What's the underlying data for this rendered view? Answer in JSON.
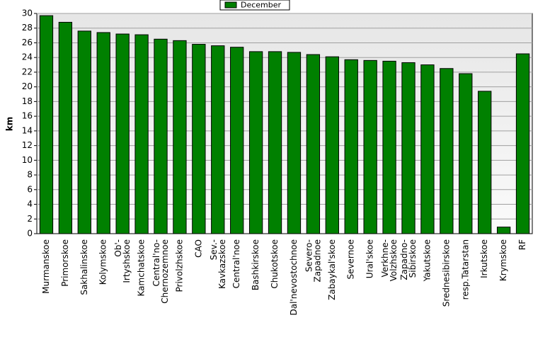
{
  "chart_data": {
    "type": "bar",
    "y_label": "km",
    "legend": "top",
    "series": [
      {
        "name": "December",
        "color": "#008000",
        "values": [
          29.7,
          28.8,
          27.6,
          27.4,
          27.2,
          27.1,
          26.5,
          26.3,
          25.8,
          25.6,
          25.4,
          24.8,
          24.8,
          24.7,
          24.4,
          24.1,
          23.7,
          23.6,
          23.5,
          23.3,
          23.0,
          22.5,
          21.8,
          19.4,
          0.9,
          24.5
        ]
      }
    ],
    "categories": [
      "Murmanskoe",
      "Primorskoe",
      "Sakhalinskoe",
      "Kolymskoe",
      "Ob'-\nIrtyshskoe",
      "Kamchatskoe",
      "Central'no-\nChernozemnoe",
      "Privolzhskoe",
      "CAO",
      "Sev.-\nKavkazskoe",
      "Central'noe",
      "Bashkirskoe",
      "Chukotskoe",
      "Dal'nevostochnoe",
      "Severo-\nZapadnoe",
      "Zabaykal'skoe",
      "Severnoe",
      "Ural'skoe",
      "Verkhne-\nVolzhskoe",
      "Zapadno-\nSibirskoe",
      "Yakutskoe",
      "Srednesibirskoe",
      "resp.Tatarstan",
      "Irkutskoe",
      "Krymskoe",
      "RF"
    ],
    "ylim": [
      0,
      30
    ],
    "yticks": [
      0,
      2,
      4,
      6,
      8,
      10,
      12,
      14,
      16,
      18,
      20,
      22,
      24,
      26,
      28,
      30
    ],
    "grid": true
  }
}
